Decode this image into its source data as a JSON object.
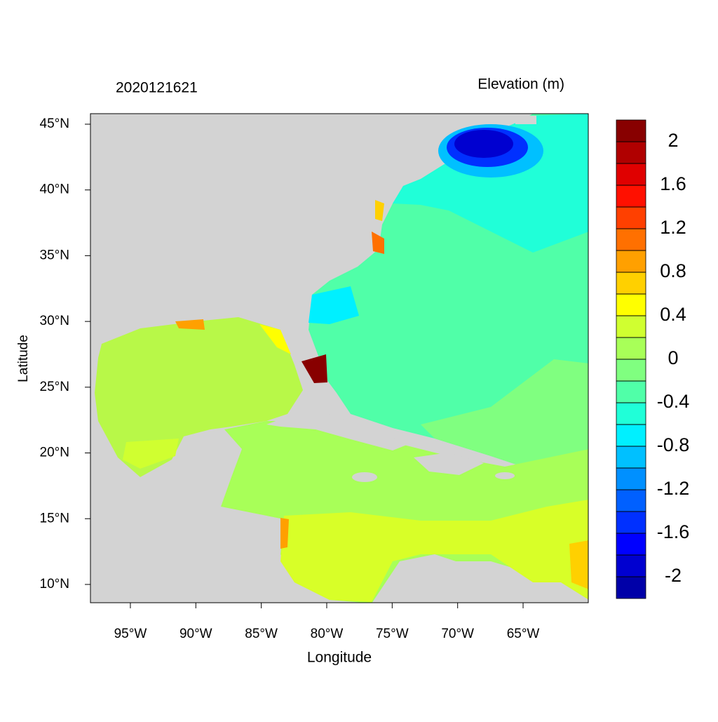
{
  "header": {
    "date": "2020121621",
    "variable": "Elevation (m)"
  },
  "map": {
    "x_label": "Longitude",
    "y_label": "Latitude",
    "xlim": [
      -98.05,
      -60.02
    ],
    "ylim": [
      8.61,
      45.8
    ],
    "xticks": [
      {
        "value": -95,
        "label": "95°W"
      },
      {
        "value": -90,
        "label": "90°W"
      },
      {
        "value": -85,
        "label": "85°W"
      },
      {
        "value": -80,
        "label": "80°W"
      },
      {
        "value": -75,
        "label": "75°W"
      },
      {
        "value": -70,
        "label": "70°W"
      },
      {
        "value": -65,
        "label": "65°W"
      }
    ],
    "yticks": [
      {
        "value": 10,
        "label": "10°N"
      },
      {
        "value": 15,
        "label": "15°N"
      },
      {
        "value": 20,
        "label": "20°N"
      },
      {
        "value": 25,
        "label": "25°N"
      },
      {
        "value": 30,
        "label": "30°N"
      },
      {
        "value": 35,
        "label": "35°N"
      },
      {
        "value": 40,
        "label": "40°N"
      },
      {
        "value": 45,
        "label": "45°N"
      }
    ]
  },
  "colorbar": {
    "levels": [
      -2,
      -1.8,
      -1.6,
      -1.4,
      -1.2,
      -1,
      -0.8,
      -0.6,
      -0.4,
      -0.2,
      0,
      0.2,
      0.4,
      0.6,
      0.8,
      1,
      1.2,
      1.4,
      1.6,
      1.8,
      2
    ],
    "ticks": [
      -2,
      -1.6,
      -1.2,
      -0.8,
      -0.4,
      0,
      0.4,
      0.8,
      1.2,
      1.6,
      2
    ],
    "colors": [
      "#0000a8",
      "#0000d0",
      "#0000ff",
      "#0030ff",
      "#0060ff",
      "#0090ff",
      "#00c0ff",
      "#00f0ff",
      "#20ffd8",
      "#50ffa8",
      "#80ff80",
      "#a8ff58",
      "#d0ff30",
      "#ffff00",
      "#ffd000",
      "#ffa000",
      "#ff7000",
      "#ff4000",
      "#ff1000",
      "#e00000",
      "#b00000",
      "#880000"
    ]
  }
}
